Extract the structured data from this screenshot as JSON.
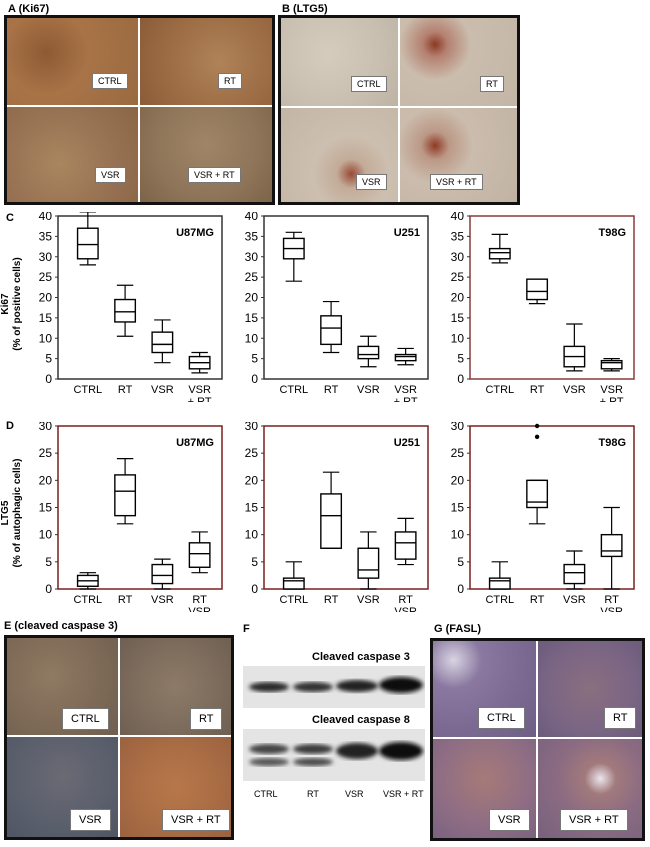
{
  "panels": {
    "a": {
      "label": "A (Ki67)",
      "cells": [
        "CTRL",
        "RT",
        "VSR",
        "VSR + RT"
      ]
    },
    "b": {
      "label": "B (LTG5)",
      "cells": [
        "CTRL",
        "RT",
        "VSR",
        "VSR + RT"
      ]
    },
    "c": {
      "label": "C",
      "ylabel_line1": "Ki67",
      "ylabel_line2": "(% of positive cells)"
    },
    "d": {
      "label": "D",
      "ylabel_line1": "LTG5",
      "ylabel_line2": "(% of autophagic cells)"
    },
    "e": {
      "label": "E (cleaved caspase 3)",
      "cells": [
        "CTRL",
        "RT",
        "VSR",
        "VSR + RT"
      ]
    },
    "f": {
      "label": "F",
      "blot1_title": "Cleaved caspase 3",
      "blot2_title": "Cleaved caspase 8",
      "lanes": [
        "CTRL",
        "RT",
        "VSR",
        "VSR + RT"
      ]
    },
    "g": {
      "label": "G (FASL)",
      "cells": [
        "CTRL",
        "RT",
        "VSR",
        "VSR + RT"
      ]
    }
  },
  "chart_data": [
    {
      "type": "box",
      "panel": "C",
      "title": "U87MG",
      "categories": [
        [
          "CTRL"
        ],
        [
          "RT"
        ],
        [
          "VSR"
        ],
        [
          "VSR",
          "+ RT"
        ]
      ],
      "ylim": [
        0,
        40
      ],
      "yticks": [
        0,
        5,
        10,
        15,
        20,
        25,
        30,
        35,
        40
      ],
      "boxes": [
        {
          "min": 28,
          "q1": 29.5,
          "median": 33,
          "q3": 37,
          "max": 41
        },
        {
          "min": 10.5,
          "q1": 14,
          "median": 16.5,
          "q3": 19.5,
          "max": 23
        },
        {
          "min": 4,
          "q1": 6.5,
          "median": 8.5,
          "q3": 11.5,
          "max": 14.5
        },
        {
          "min": 1.5,
          "q1": 2.5,
          "median": 4,
          "q3": 5.5,
          "max": 6.5
        }
      ]
    },
    {
      "type": "box",
      "panel": "C",
      "title": "U251",
      "categories": [
        [
          "CTRL"
        ],
        [
          "RT"
        ],
        [
          "VSR"
        ],
        [
          "VSR",
          "+ RT"
        ]
      ],
      "ylim": [
        0,
        40
      ],
      "yticks": [
        0,
        5,
        10,
        15,
        20,
        25,
        30,
        35,
        40
      ],
      "boxes": [
        {
          "min": 24,
          "q1": 29.5,
          "median": 32,
          "q3": 34.5,
          "max": 36
        },
        {
          "min": 6.5,
          "q1": 8.5,
          "median": 12.5,
          "q3": 15.5,
          "max": 19
        },
        {
          "min": 3,
          "q1": 5,
          "median": 6,
          "q3": 8,
          "max": 10.5
        },
        {
          "min": 3.5,
          "q1": 4.5,
          "median": 5.5,
          "q3": 6,
          "max": 7.5
        }
      ]
    },
    {
      "type": "box",
      "panel": "C",
      "title": "T98G",
      "categories": [
        [
          "CTRL"
        ],
        [
          "RT"
        ],
        [
          "VSR"
        ],
        [
          "VSR",
          "+ RT"
        ]
      ],
      "ylim": [
        0,
        40
      ],
      "yticks": [
        0,
        5,
        10,
        15,
        20,
        25,
        30,
        35,
        40
      ],
      "boxes": [
        {
          "min": 28.5,
          "q1": 29.5,
          "median": 31,
          "q3": 32,
          "max": 35.5
        },
        {
          "min": 18.5,
          "q1": 19.5,
          "median": 21.5,
          "q3": 24.5,
          "max": 24.5
        },
        {
          "min": 2,
          "q1": 3,
          "median": 5.5,
          "q3": 8,
          "max": 13.5
        },
        {
          "min": 2,
          "q1": 2.5,
          "median": 4,
          "q3": 4.5,
          "max": 5
        }
      ]
    },
    {
      "type": "box",
      "panel": "D",
      "title": "U87MG",
      "categories": [
        [
          "CTRL"
        ],
        [
          "RT"
        ],
        [
          "VSR"
        ],
        [
          "RT",
          "VSR"
        ]
      ],
      "ylim": [
        0,
        30
      ],
      "yticks": [
        0,
        5,
        10,
        15,
        20,
        25,
        30
      ],
      "boxes": [
        {
          "min": 0,
          "q1": 0.5,
          "median": 1.5,
          "q3": 2.5,
          "max": 3
        },
        {
          "min": 12,
          "q1": 13.5,
          "median": 18,
          "q3": 21,
          "max": 24
        },
        {
          "min": 0,
          "q1": 1,
          "median": 2.5,
          "q3": 4.5,
          "max": 5.5
        },
        {
          "min": 3,
          "q1": 4,
          "median": 6.5,
          "q3": 8.5,
          "max": 10.5
        }
      ]
    },
    {
      "type": "box",
      "panel": "D",
      "title": "U251",
      "categories": [
        [
          "CTRL"
        ],
        [
          "RT"
        ],
        [
          "VSR"
        ],
        [
          "RT",
          "VSR"
        ]
      ],
      "ylim": [
        0,
        30
      ],
      "yticks": [
        0,
        5,
        10,
        15,
        20,
        25,
        30
      ],
      "boxes": [
        {
          "min": 0,
          "q1": 0,
          "median": 1.5,
          "q3": 2,
          "max": 5
        },
        {
          "min": 7.5,
          "q1": 7.5,
          "median": 13.5,
          "q3": 17.5,
          "max": 21.5
        },
        {
          "min": 0,
          "q1": 2,
          "median": 3.5,
          "q3": 7.5,
          "max": 10.5
        },
        {
          "min": 4.5,
          "q1": 5.5,
          "median": 8.5,
          "q3": 10.5,
          "max": 13
        }
      ]
    },
    {
      "type": "box",
      "panel": "D",
      "title": "T98G",
      "categories": [
        [
          "CTRL"
        ],
        [
          "RT"
        ],
        [
          "VSR"
        ],
        [
          "RT",
          "VSR"
        ]
      ],
      "ylim": [
        0,
        30
      ],
      "yticks": [
        0,
        5,
        10,
        15,
        20,
        25,
        30
      ],
      "boxes": [
        {
          "min": 0,
          "q1": 0,
          "median": 1.5,
          "q3": 2,
          "max": 5
        },
        {
          "min": 12,
          "q1": 15,
          "median": 16,
          "q3": 20,
          "max": 20,
          "outliers": [
            28,
            30
          ]
        },
        {
          "min": 0,
          "q1": 1,
          "median": 3,
          "q3": 4.5,
          "max": 7
        },
        {
          "min": 0,
          "q1": 6,
          "median": 7,
          "q3": 10,
          "max": 15
        }
      ]
    }
  ]
}
